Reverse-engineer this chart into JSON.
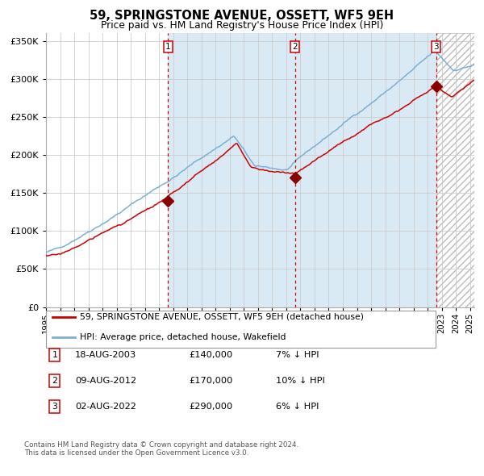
{
  "title": "59, SPRINGSTONE AVENUE, OSSETT, WF5 9EH",
  "subtitle": "Price paid vs. HM Land Registry's House Price Index (HPI)",
  "legend_line1": "59, SPRINGSTONE AVENUE, OSSETT, WF5 9EH (detached house)",
  "legend_line2": "HPI: Average price, detached house, Wakefield",
  "footer1": "Contains HM Land Registry data © Crown copyright and database right 2024.",
  "footer2": "This data is licensed under the Open Government Licence v3.0.",
  "sales": [
    {
      "num": 1,
      "date": "18-AUG-2003",
      "price": 140000,
      "pct": "7%",
      "direction": "↓"
    },
    {
      "num": 2,
      "date": "09-AUG-2012",
      "price": 170000,
      "pct": "10%",
      "direction": "↓"
    },
    {
      "num": 3,
      "date": "02-AUG-2022",
      "price": 290000,
      "pct": "6%",
      "direction": "↓"
    }
  ],
  "sale_dates_decimal": [
    2003.63,
    2012.61,
    2022.59
  ],
  "sale_prices": [
    140000,
    170000,
    290000
  ],
  "ylim": [
    0,
    360000
  ],
  "yticks": [
    0,
    50000,
    100000,
    150000,
    200000,
    250000,
    300000,
    350000
  ],
  "xlim_start": 1995.0,
  "xlim_end": 2025.3,
  "background_shaded_start": 2003.63,
  "background_shaded_end": 2022.59,
  "hatch_start": 2022.59,
  "red_line_color": "#cc0000",
  "blue_line_color": "#7bafd4",
  "shaded_color": "#daeaf5",
  "sale_marker_color": "#880000",
  "vline_color": "#cc0000",
  "grid_color": "#cccccc",
  "bg_color": "#ffffff"
}
